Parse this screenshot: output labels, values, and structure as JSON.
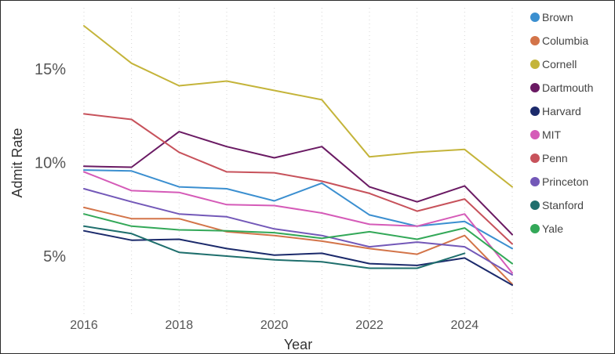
{
  "chart_data": {
    "type": "line",
    "title": "",
    "xlabel": "Year",
    "ylabel": "Admit Rate",
    "x": [
      2016,
      2017,
      2018,
      2019,
      2020,
      2021,
      2022,
      2023,
      2024,
      2025
    ],
    "xlim": [
      2016,
      2025
    ],
    "ylim": [
      2,
      18.5
    ],
    "y_ticks": [
      {
        "value": 5,
        "label": "5%"
      },
      {
        "value": 10,
        "label": "10%"
      },
      {
        "value": 15,
        "label": "15%"
      }
    ],
    "x_ticks": [
      {
        "value": 2016,
        "label": "2016"
      },
      {
        "value": 2018,
        "label": "2018"
      },
      {
        "value": 2020,
        "label": "2020"
      },
      {
        "value": 2022,
        "label": "2022"
      },
      {
        "value": 2024,
        "label": "2024"
      }
    ],
    "grid": "vertical-dotted",
    "legend_position": "right",
    "series": [
      {
        "name": "Brown",
        "color": "#3b8fd0",
        "values": [
          9.6,
          9.55,
          8.7,
          8.6,
          7.95,
          8.9,
          7.2,
          6.6,
          6.85,
          5.4
        ]
      },
      {
        "name": "Columbia",
        "color": "#d37449",
        "values": [
          7.6,
          7.0,
          7.0,
          6.3,
          6.1,
          5.8,
          5.4,
          5.1,
          6.1,
          3.5
        ]
      },
      {
        "name": "Cornell",
        "color": "#c4b43a",
        "values": [
          17.3,
          15.3,
          14.1,
          14.35,
          13.85,
          13.35,
          10.3,
          10.55,
          10.7,
          8.7
        ]
      },
      {
        "name": "Dartmouth",
        "color": "#6a1a63",
        "values": [
          9.8,
          9.75,
          11.65,
          10.85,
          10.25,
          10.85,
          8.7,
          7.9,
          8.75,
          6.15
        ]
      },
      {
        "name": "Harvard",
        "color": "#1b2a6b",
        "values": [
          6.35,
          5.85,
          5.9,
          5.4,
          5.05,
          5.15,
          4.6,
          4.5,
          4.9,
          3.45
        ]
      },
      {
        "name": "MIT",
        "color": "#d55bb8",
        "values": [
          9.5,
          8.5,
          8.4,
          7.75,
          7.7,
          7.3,
          6.7,
          6.6,
          7.25,
          4.1
        ]
      },
      {
        "name": "Penn",
        "color": "#c7525b",
        "values": [
          12.6,
          12.3,
          10.55,
          9.5,
          9.45,
          9.0,
          8.35,
          7.4,
          8.05,
          5.65
        ]
      },
      {
        "name": "Princeton",
        "color": "#7358b8",
        "values": [
          8.6,
          7.9,
          7.25,
          7.1,
          6.45,
          6.1,
          5.5,
          5.75,
          5.5,
          4.0
        ]
      },
      {
        "name": "Stanford",
        "color": "#1f6f6d",
        "values": [
          6.6,
          6.2,
          5.2,
          5.0,
          4.8,
          4.7,
          4.35,
          4.35,
          5.15,
          null
        ]
      },
      {
        "name": "Yale",
        "color": "#33a858",
        "values": [
          7.25,
          6.6,
          6.4,
          6.35,
          6.25,
          5.95,
          6.3,
          5.9,
          6.5,
          4.6
        ]
      }
    ]
  }
}
